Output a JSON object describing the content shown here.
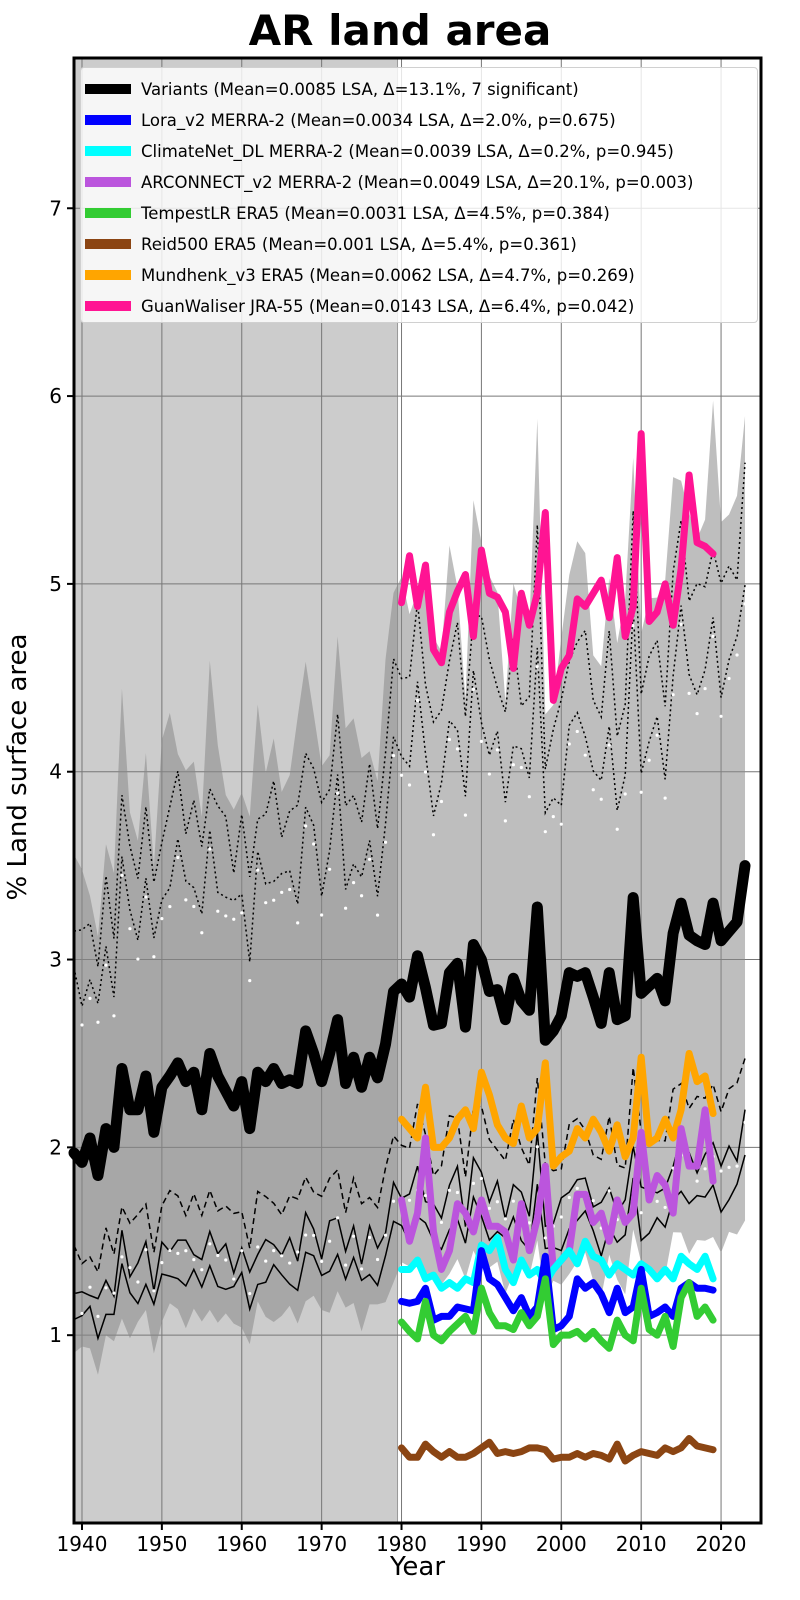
{
  "chart_data": {
    "type": "line",
    "title": "AR land area",
    "xlabel": "Year",
    "ylabel": "% Land surface area",
    "xlim": [
      1939,
      2025
    ],
    "ylim": [
      0,
      7.8
    ],
    "xticks": [
      1940,
      1950,
      1960,
      1970,
      1980,
      1990,
      2000,
      2010,
      2020
    ],
    "yticks": [
      1,
      2,
      3,
      4,
      5,
      6,
      7
    ],
    "grid": true,
    "legend_position": "top",
    "shaded_period": [
      1939,
      1979.5
    ],
    "legend": [
      {
        "label": "Variants (Mean=0.0085 LSA, Δ=13.1%, 7 significant)",
        "color": "#000000"
      },
      {
        "label": "Lora_v2 MERRA-2 (Mean=0.0034 LSA, Δ=2.0%, p=0.675)",
        "color": "#0000ff"
      },
      {
        "label": "ClimateNet_DL MERRA-2 (Mean=0.0039 LSA, Δ=0.2%, p=0.945)",
        "color": "#00ffff"
      },
      {
        "label": "ARCONNECT_v2 MERRA-2 (Mean=0.0049 LSA, Δ=20.1%, p=0.003)",
        "color": "#bb55dd"
      },
      {
        "label": "TempestLR ERA5 (Mean=0.0031 LSA, Δ=4.5%, p=0.384)",
        "color": "#33cc33"
      },
      {
        "label": "Reid500 ERA5 (Mean=0.001 LSA, Δ=5.4%, p=0.361)",
        "color": "#8b4513"
      },
      {
        "label": "Mundhenk_v3 ERA5 (Mean=0.0062 LSA, Δ=4.7%, p=0.269)",
        "color": "#ffa500"
      },
      {
        "label": "GuanWaliser JRA-55 (Mean=0.0143 LSA, Δ=6.4%, p=0.042)",
        "color": "#ff1493"
      }
    ],
    "series": [
      {
        "name": "Variants",
        "color": "#000000",
        "x_start": 1939,
        "values": [
          1.97,
          1.92,
          2.05,
          1.85,
          2.1,
          2.0,
          2.42,
          2.2,
          2.2,
          2.38,
          2.08,
          2.32,
          2.38,
          2.45,
          2.35,
          2.4,
          2.2,
          2.5,
          2.38,
          2.3,
          2.22,
          2.35,
          2.1,
          2.4,
          2.35,
          2.42,
          2.34,
          2.36,
          2.34,
          2.62,
          2.5,
          2.35,
          2.5,
          2.68,
          2.34,
          2.48,
          2.32,
          2.48,
          2.37,
          2.55,
          2.83,
          2.87,
          2.8,
          3.02,
          2.85,
          2.65,
          2.66,
          2.93,
          2.98,
          2.64,
          3.08,
          3.0,
          2.83,
          2.84,
          2.68,
          2.9,
          2.78,
          2.73,
          3.28,
          2.57,
          2.62,
          2.7,
          2.93,
          2.91,
          2.93,
          2.8,
          2.66,
          2.93,
          2.68,
          2.7,
          3.33,
          2.82,
          2.86,
          2.9,
          2.78,
          3.14,
          3.3,
          3.13,
          3.1,
          3.08,
          3.3,
          3.1,
          3.15,
          3.2,
          3.5
        ]
      },
      {
        "name": "GuanWaliser JRA-55",
        "color": "#ff1493",
        "x_start": 1980,
        "values": [
          4.9,
          5.15,
          4.88,
          5.1,
          4.65,
          4.58,
          4.85,
          4.96,
          5.05,
          4.72,
          5.18,
          4.95,
          4.93,
          4.85,
          4.55,
          4.95,
          4.78,
          4.95,
          5.38,
          4.38,
          4.55,
          4.62,
          4.92,
          4.88,
          4.95,
          5.02,
          4.82,
          5.14,
          4.72,
          4.88,
          5.8,
          4.8,
          4.85,
          5.0,
          4.78,
          5.08,
          5.58,
          5.22,
          5.2,
          5.16
        ]
      },
      {
        "name": "Mundhenk_v3 ERA5",
        "color": "#ffa500",
        "x_start": 1980,
        "values": [
          2.15,
          2.1,
          2.05,
          2.32,
          2.0,
          2.0,
          2.05,
          2.15,
          2.2,
          2.1,
          2.4,
          2.28,
          2.12,
          2.05,
          2.02,
          2.22,
          2.05,
          2.1,
          2.45,
          1.9,
          1.95,
          1.98,
          2.1,
          2.05,
          2.15,
          2.08,
          1.98,
          2.12,
          1.95,
          2.05,
          2.48,
          2.02,
          2.05,
          2.15,
          2.05,
          2.2,
          2.5,
          2.35,
          2.38,
          2.18
        ]
      },
      {
        "name": "ARCONNECT_v2 MERRA-2",
        "color": "#bb55dd",
        "x_start": 1980,
        "values": [
          1.72,
          1.5,
          1.65,
          2.05,
          1.55,
          1.35,
          1.45,
          1.7,
          1.65,
          1.55,
          1.72,
          1.58,
          1.58,
          1.55,
          1.4,
          1.7,
          1.45,
          1.62,
          1.9,
          1.35,
          1.4,
          1.45,
          1.75,
          1.75,
          1.6,
          1.65,
          1.5,
          1.72,
          1.6,
          1.65,
          2.08,
          1.72,
          1.85,
          1.8,
          1.65,
          2.1,
          1.9,
          1.9,
          2.2,
          1.82
        ]
      },
      {
        "name": "ClimateNet_DL MERRA-2",
        "color": "#00ffff",
        "x_start": 1980,
        "values": [
          1.35,
          1.35,
          1.4,
          1.3,
          1.32,
          1.25,
          1.28,
          1.25,
          1.3,
          1.28,
          1.48,
          1.45,
          1.52,
          1.35,
          1.28,
          1.4,
          1.32,
          1.35,
          1.28,
          1.35,
          1.4,
          1.45,
          1.38,
          1.5,
          1.42,
          1.4,
          1.32,
          1.38,
          1.35,
          1.32,
          1.38,
          1.35,
          1.3,
          1.35,
          1.3,
          1.42,
          1.38,
          1.35,
          1.42,
          1.3
        ]
      },
      {
        "name": "Lora_v2 MERRA-2",
        "color": "#0000ff",
        "x_start": 1980,
        "values": [
          1.18,
          1.17,
          1.18,
          1.25,
          1.08,
          1.1,
          1.1,
          1.15,
          1.14,
          1.13,
          1.45,
          1.3,
          1.27,
          1.2,
          1.13,
          1.2,
          1.1,
          1.15,
          1.42,
          1.03,
          1.05,
          1.1,
          1.3,
          1.25,
          1.28,
          1.22,
          1.12,
          1.25,
          1.12,
          1.15,
          1.35,
          1.1,
          1.12,
          1.15,
          1.1,
          1.25,
          1.28,
          1.25,
          1.25,
          1.24
        ]
      },
      {
        "name": "TempestLR ERA5",
        "color": "#33cc33",
        "x_start": 1980,
        "values": [
          1.07,
          1.02,
          0.98,
          1.18,
          1.0,
          0.97,
          1.02,
          1.06,
          1.1,
          1.02,
          1.25,
          1.12,
          1.05,
          1.05,
          1.03,
          1.12,
          1.05,
          1.1,
          1.3,
          0.95,
          1.0,
          1.0,
          1.02,
          0.98,
          1.02,
          0.97,
          0.93,
          1.08,
          1.0,
          0.97,
          1.25,
          1.03,
          1.0,
          1.1,
          0.94,
          1.2,
          1.28,
          1.1,
          1.15,
          1.08
        ]
      },
      {
        "name": "Reid500 ERA5",
        "color": "#8b4513",
        "x_start": 1980,
        "values": [
          0.4,
          0.35,
          0.35,
          0.42,
          0.38,
          0.35,
          0.38,
          0.35,
          0.35,
          0.37,
          0.4,
          0.43,
          0.37,
          0.38,
          0.37,
          0.38,
          0.4,
          0.4,
          0.39,
          0.34,
          0.35,
          0.35,
          0.37,
          0.35,
          0.37,
          0.36,
          0.34,
          0.42,
          0.33,
          0.36,
          0.38,
          0.37,
          0.36,
          0.4,
          0.38,
          0.4,
          0.45,
          0.41,
          0.4,
          0.39
        ]
      }
    ]
  }
}
